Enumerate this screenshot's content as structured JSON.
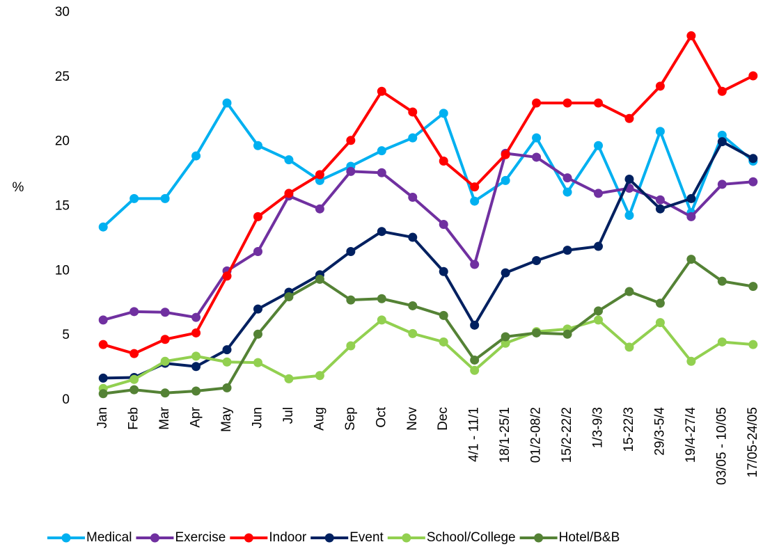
{
  "chart_data": {
    "type": "line",
    "y_label": "%",
    "categories": [
      "Jan",
      "Feb",
      "Mar",
      "Apr",
      "May",
      "Jun",
      "Jul",
      "Aug",
      "Sep",
      "Oct",
      "Nov",
      "Dec",
      "4/1 - 11/1",
      "18/1-25/1",
      "01/2-08/2",
      "15/2-22/2",
      "1/3-9/3",
      "15-22/3",
      "29/3-5/4",
      "19/4-27/4",
      "03/05 - 10/05",
      "17/05-24/05"
    ],
    "ylim": [
      0,
      30
    ],
    "yticks": [
      0,
      5,
      10,
      15,
      20,
      25,
      30
    ],
    "grid": false,
    "legend": "bottom",
    "series": [
      {
        "name": "Medical",
        "color": "#00b0f0",
        "values": [
          13.4,
          15.6,
          15.6,
          18.9,
          23.0,
          19.7,
          18.6,
          17.0,
          18.1,
          19.3,
          20.3,
          22.2,
          15.4,
          17.0,
          20.3,
          16.1,
          19.7,
          14.3,
          20.8,
          14.5,
          20.5,
          18.5
        ]
      },
      {
        "name": "Exercise",
        "color": "#7030a0",
        "values": [
          6.2,
          6.85,
          6.8,
          6.4,
          10.0,
          11.5,
          15.8,
          14.8,
          17.7,
          17.6,
          15.7,
          13.6,
          10.5,
          19.1,
          18.8,
          17.2,
          16.0,
          16.4,
          15.5,
          14.2,
          16.7,
          16.9
        ]
      },
      {
        "name": "Indoor",
        "color": "#ff0000",
        "values": [
          4.3,
          3.6,
          4.7,
          5.2,
          9.6,
          14.2,
          16.0,
          17.45,
          20.1,
          23.9,
          22.3,
          18.5,
          16.5,
          19.0,
          23.0,
          23.0,
          23.0,
          21.8,
          24.3,
          28.2,
          23.9,
          25.1
        ]
      },
      {
        "name": "Event",
        "color": "#002060",
        "values": [
          1.7,
          1.75,
          2.85,
          2.6,
          3.9,
          7.05,
          8.35,
          9.7,
          11.5,
          13.05,
          12.6,
          9.95,
          5.8,
          9.85,
          10.8,
          11.6,
          11.9,
          17.1,
          14.8,
          15.6,
          20.0,
          18.7
        ]
      },
      {
        "name": "School/College",
        "color": "#92d050",
        "values": [
          0.9,
          1.6,
          3.0,
          3.4,
          2.95,
          2.9,
          1.65,
          1.9,
          4.2,
          6.2,
          5.15,
          4.5,
          2.3,
          4.4,
          5.3,
          5.5,
          6.2,
          4.1,
          6.0,
          3.0,
          4.5,
          4.3
        ]
      },
      {
        "name": "Hotel/B&B",
        "color": "#548235",
        "values": [
          0.5,
          0.8,
          0.55,
          0.7,
          0.95,
          5.1,
          8.0,
          9.35,
          7.75,
          7.85,
          7.3,
          6.55,
          3.1,
          4.9,
          5.2,
          5.1,
          6.9,
          8.4,
          7.5,
          10.9,
          9.2,
          8.8
        ]
      }
    ]
  }
}
